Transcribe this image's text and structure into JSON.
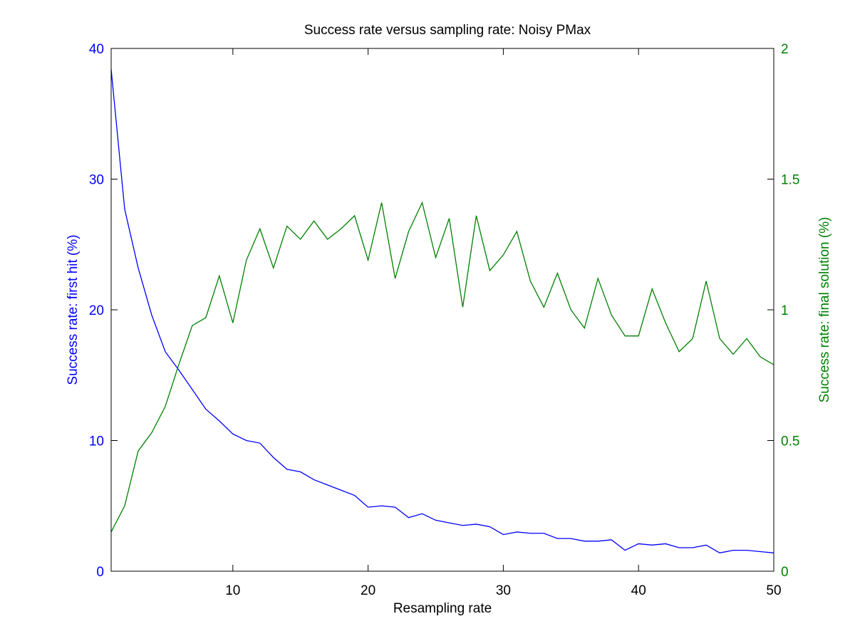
{
  "chart_data": {
    "type": "line",
    "title": "Success rate versus sampling rate: Noisy PMax",
    "xlabel": "Resampling rate",
    "ylabel_left": "Success rate: first hit (%)",
    "ylabel_right": "Success rate: final solution (%)",
    "xlim": [
      1,
      50
    ],
    "ylim_left": [
      0,
      40
    ],
    "ylim_right": [
      0,
      2
    ],
    "x_ticks": [
      10,
      20,
      30,
      40,
      50
    ],
    "y_left_ticks": [
      0,
      10,
      20,
      30,
      40
    ],
    "y_right_ticks": [
      0,
      0.5,
      1,
      1.5,
      2
    ],
    "grid": false,
    "colors": {
      "left": "#0000ff",
      "right": "#008000",
      "axis": "#000000"
    },
    "x": [
      1,
      2,
      3,
      4,
      5,
      6,
      7,
      8,
      9,
      10,
      11,
      12,
      13,
      14,
      15,
      16,
      17,
      18,
      19,
      20,
      21,
      22,
      23,
      24,
      25,
      26,
      27,
      28,
      29,
      30,
      31,
      32,
      33,
      34,
      35,
      36,
      37,
      38,
      39,
      40,
      41,
      42,
      43,
      44,
      45,
      46,
      47,
      48,
      49,
      50
    ],
    "series": [
      {
        "axis": "left",
        "values": [
          38.4,
          27.7,
          23.2,
          19.6,
          16.8,
          15.4,
          13.9,
          12.4,
          11.5,
          10.5,
          10.0,
          9.8,
          8.7,
          7.8,
          7.6,
          7.0,
          6.6,
          6.2,
          5.8,
          4.9,
          5.0,
          4.9,
          4.1,
          4.4,
          3.9,
          3.7,
          3.5,
          3.6,
          3.4,
          2.8,
          3.0,
          2.9,
          2.9,
          2.5,
          2.5,
          2.3,
          2.3,
          2.4,
          1.6,
          2.1,
          2.0,
          2.1,
          1.8,
          1.8,
          2.0,
          1.4,
          1.6,
          1.6,
          1.5,
          1.4
        ]
      },
      {
        "axis": "right",
        "values": [
          0.15,
          0.25,
          0.46,
          0.53,
          0.63,
          0.79,
          0.94,
          0.97,
          1.13,
          0.95,
          1.19,
          1.31,
          1.16,
          1.32,
          1.27,
          1.34,
          1.27,
          1.31,
          1.36,
          1.19,
          1.41,
          1.12,
          1.3,
          1.41,
          1.2,
          1.35,
          1.01,
          1.36,
          1.15,
          1.21,
          1.3,
          1.11,
          1.01,
          1.14,
          1.0,
          0.93,
          1.12,
          0.98,
          0.9,
          0.9,
          1.08,
          0.95,
          0.84,
          0.89,
          1.11,
          0.89,
          0.83,
          0.89,
          0.82,
          0.79
        ]
      }
    ]
  }
}
